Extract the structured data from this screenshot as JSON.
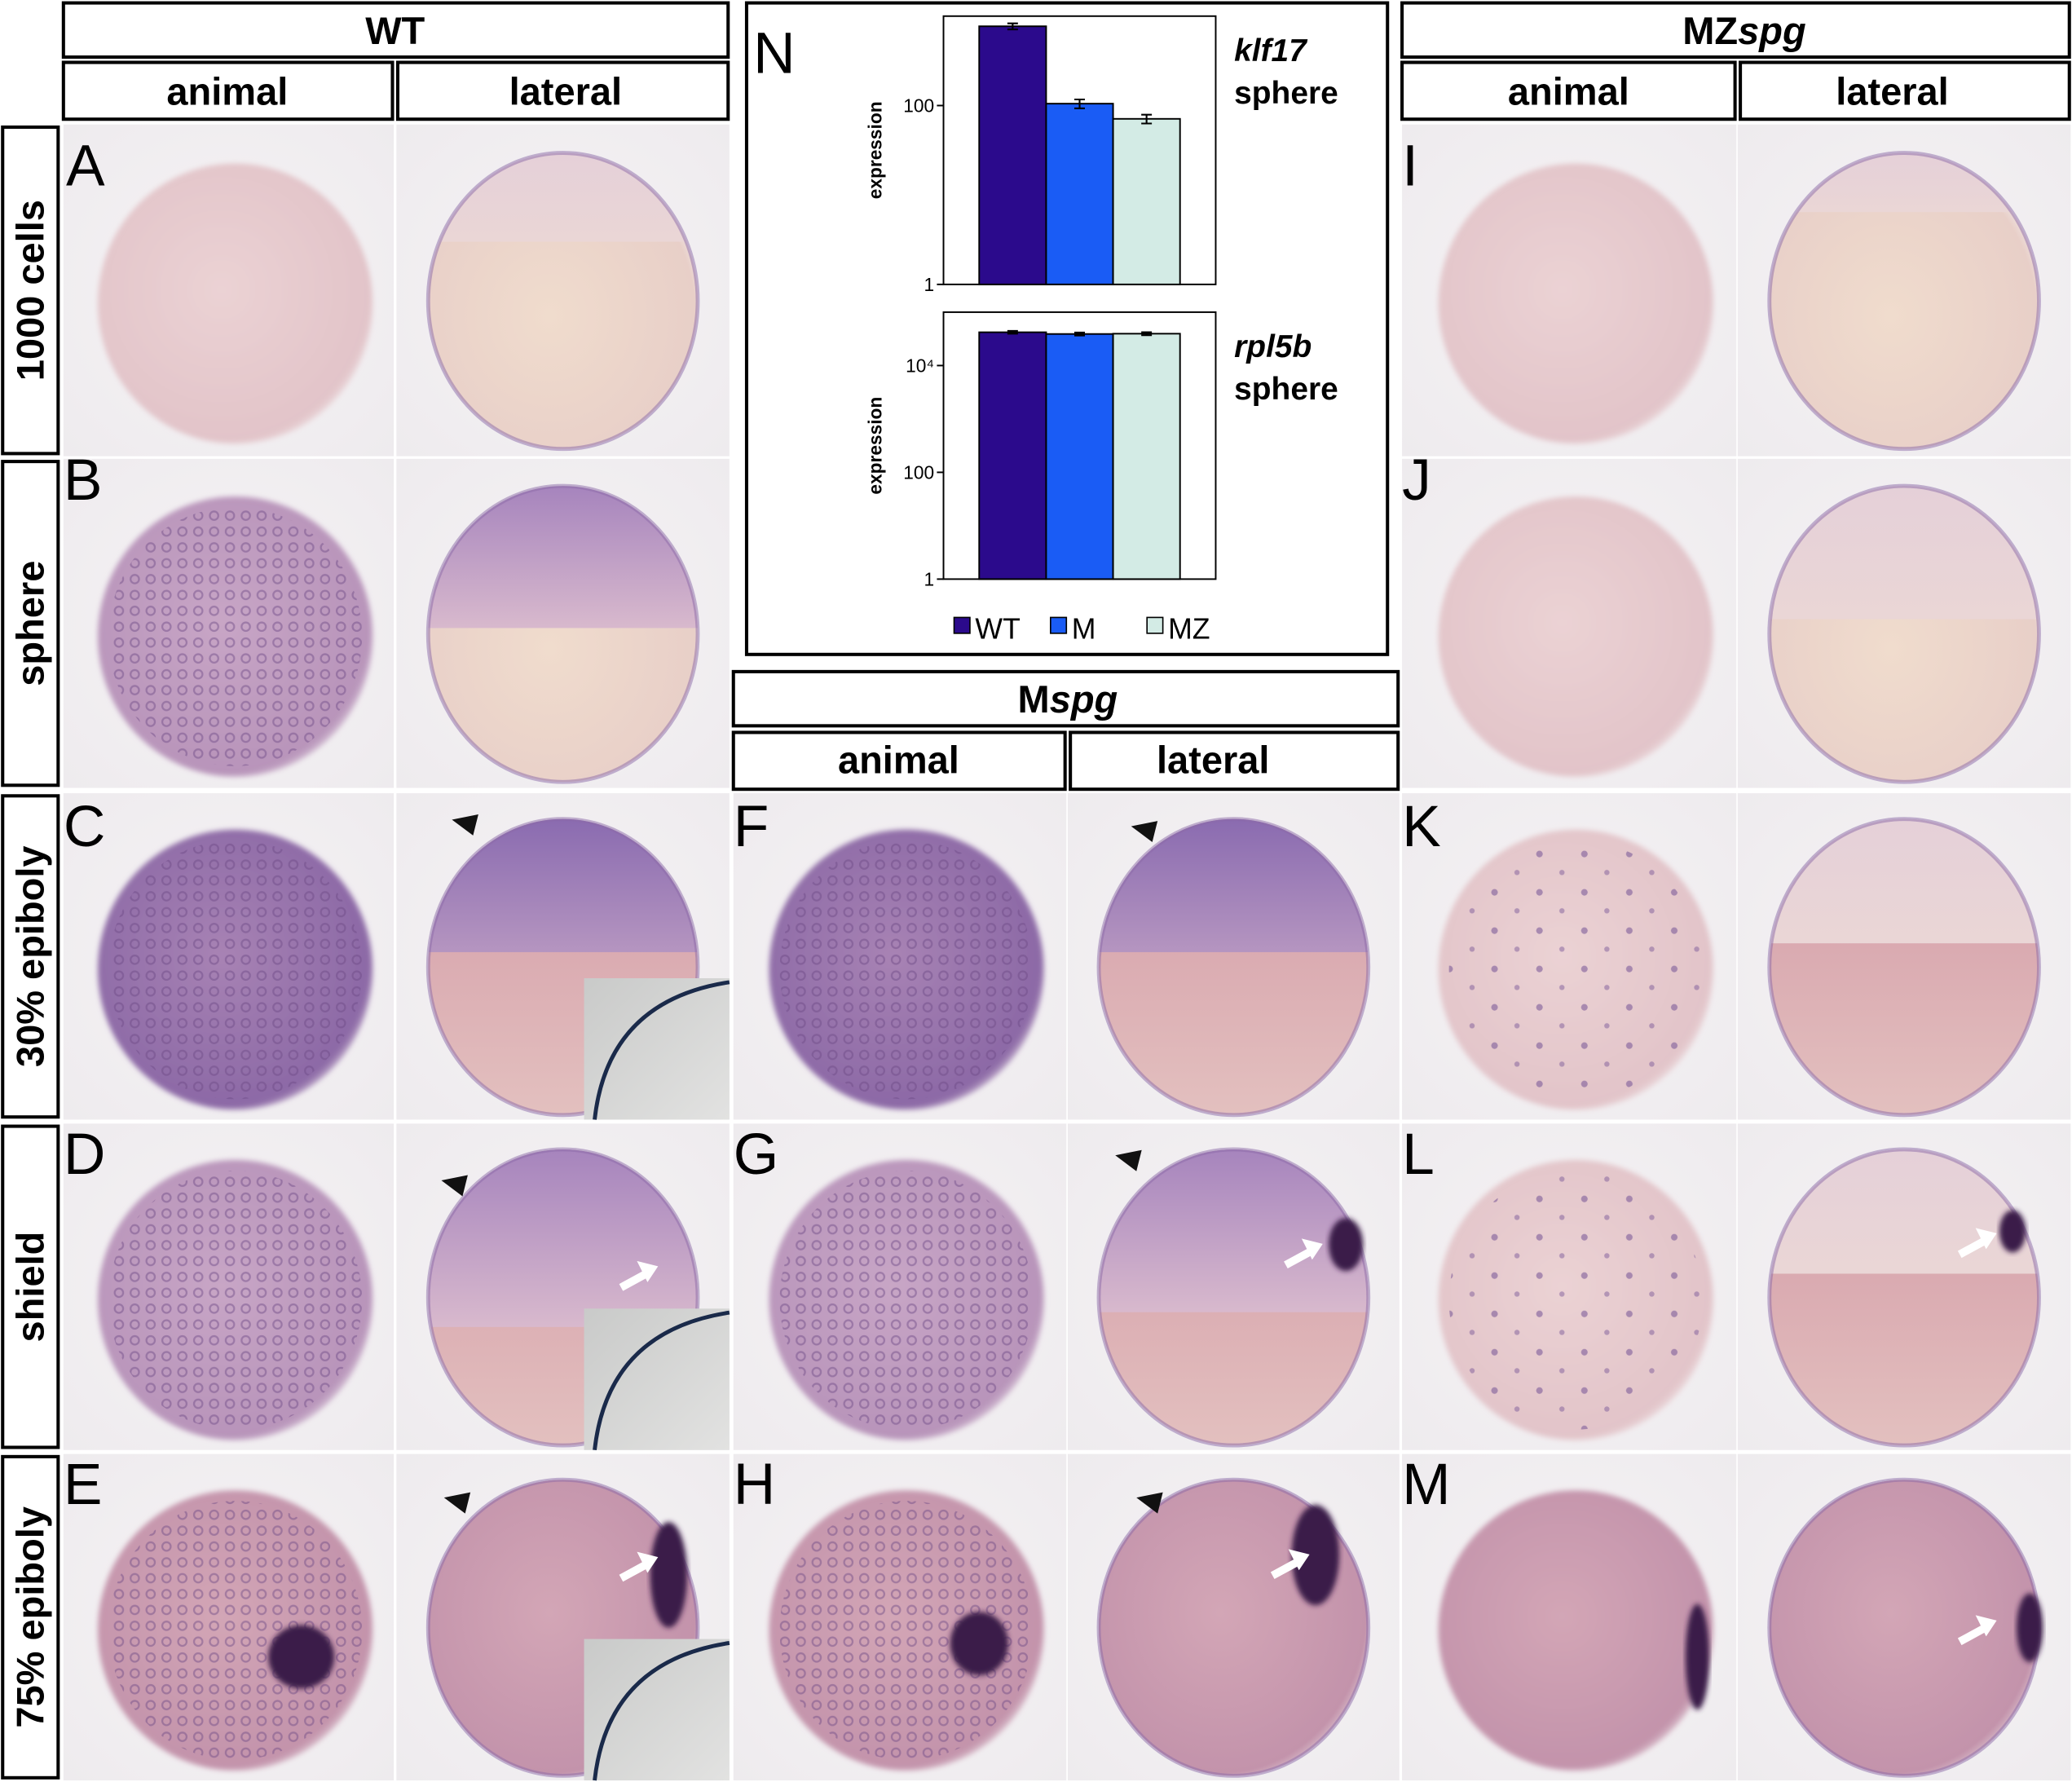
{
  "figure": {
    "wt_header": "WT",
    "wt_animal": "animal",
    "wt_lateral": "lateral",
    "mzspg_header": {
      "plain": "MZ",
      "italic": "spg"
    },
    "mzspg_animal": "animal",
    "mzspg_lateral": "lateral",
    "mspg_header": {
      "plain": "M",
      "italic": "spg"
    },
    "mspg_animal": "animal",
    "mspg_lateral": "lateral",
    "row_labels": [
      "1000 cells",
      "sphere",
      "30% epiboly",
      "shield",
      "75% epiboly"
    ],
    "panel_letters": [
      "A",
      "B",
      "C",
      "D",
      "E",
      "F",
      "G",
      "H",
      "I",
      "J",
      "K",
      "L",
      "M",
      "N"
    ]
  },
  "chart_data": [
    {
      "type": "bar",
      "title": "klf17",
      "subtitle": "sphere",
      "y_label": "expression",
      "categories": [
        "WT",
        "M",
        "MZ"
      ],
      "values": [
        770,
        105,
        71
      ],
      "errors": [
        60,
        12,
        8
      ],
      "colors": [
        "#2b0a8c",
        "#1a5cf5",
        "#d3ebe5"
      ],
      "log_scale": true,
      "ylim": [
        1,
        1000
      ],
      "yticks": [
        1,
        100
      ]
    },
    {
      "type": "bar",
      "title": "rpl5b",
      "subtitle": "sphere",
      "y_label": "expression",
      "categories": [
        "WT",
        "M",
        "MZ"
      ],
      "values": [
        42000,
        39000,
        39500
      ],
      "errors": [
        2500,
        2500,
        2500
      ],
      "colors": [
        "#2b0a8c",
        "#1a5cf5",
        "#d3ebe5"
      ],
      "log_scale": true,
      "ylim": [
        1,
        100000
      ],
      "yticks": [
        1,
        100,
        {
          "value": 10000,
          "label": "10⁴"
        }
      ]
    }
  ]
}
